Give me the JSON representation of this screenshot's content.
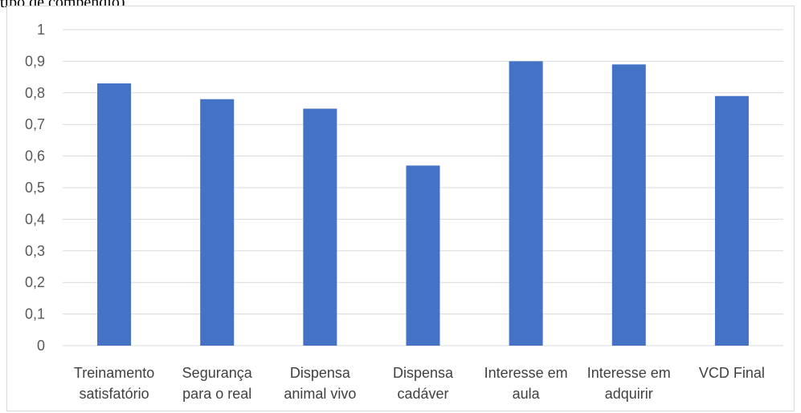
{
  "caption": "tipo de compêndio)",
  "colors": {
    "bar": "#4472c4",
    "grid": "#d9d9d9",
    "text": "#595959"
  },
  "chart_data": {
    "type": "bar",
    "title": "",
    "xlabel": "",
    "ylabel": "",
    "ylim": [
      0,
      1
    ],
    "yticks": [
      "0",
      "0,1",
      "0,2",
      "0,3",
      "0,4",
      "0,5",
      "0,6",
      "0,7",
      "0,8",
      "0,9",
      "1"
    ],
    "grid": true,
    "categories": [
      [
        "Treinamento",
        "satisfatório"
      ],
      [
        "Segurança",
        "para o real"
      ],
      [
        "Dispensa",
        "animal vivo"
      ],
      [
        "Dispensa",
        "cadáver"
      ],
      [
        "Interesse em",
        "aula"
      ],
      [
        "Interesse em",
        "adquirir"
      ],
      [
        "VCD Final"
      ]
    ],
    "values": [
      0.83,
      0.78,
      0.75,
      0.57,
      0.9,
      0.89,
      0.79
    ]
  }
}
